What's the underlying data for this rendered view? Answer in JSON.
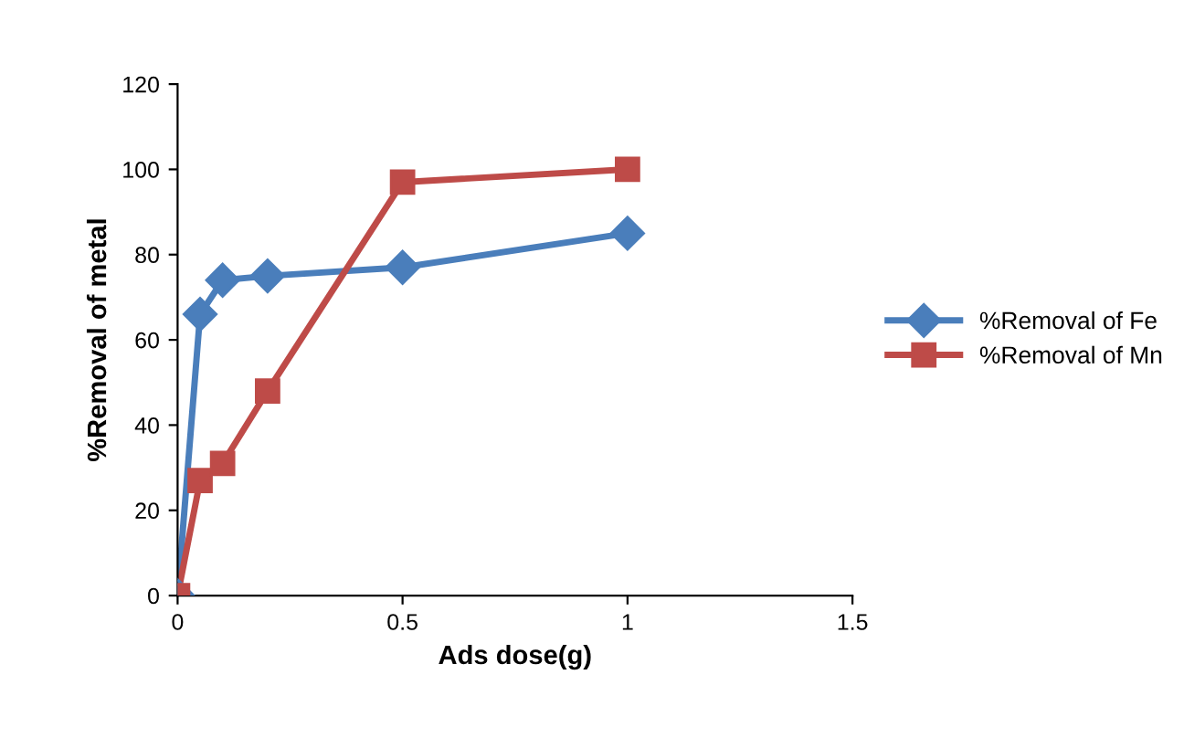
{
  "chart_data": {
    "type": "line",
    "xlabel": "Ads dose(g)",
    "ylabel": "%Removal of metal",
    "xlim": [
      0,
      1.5
    ],
    "xticks": [
      0,
      0.5,
      1,
      1.5
    ],
    "ylim": [
      0,
      120
    ],
    "yticks": [
      0,
      20,
      40,
      60,
      80,
      100,
      120
    ],
    "grid": false,
    "legend": "right",
    "series": [
      {
        "name": "%Removal of Fe",
        "color": "#4a7ebb",
        "marker": "diamond",
        "x": [
          0,
          0.05,
          0.1,
          0.2,
          0.5,
          1
        ],
        "values": [
          0,
          66,
          74,
          75,
          77,
          85
        ]
      },
      {
        "name": "%Removal of Mn",
        "color": "#be4b48",
        "marker": "square",
        "x": [
          0,
          0.05,
          0.1,
          0.2,
          0.5,
          1
        ],
        "values": [
          0,
          27,
          31,
          48,
          97,
          100
        ]
      }
    ]
  }
}
